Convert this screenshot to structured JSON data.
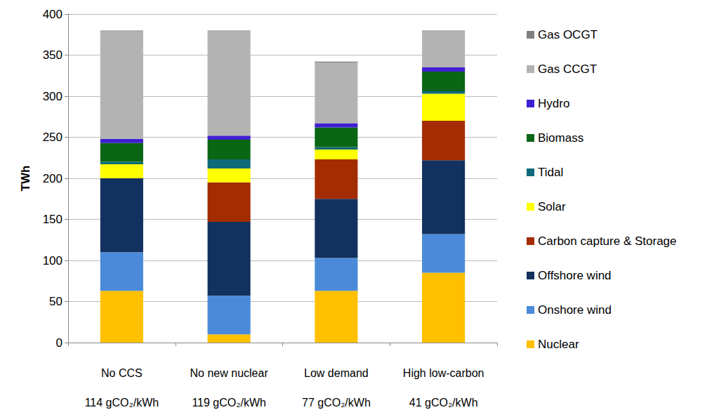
{
  "chart_data": {
    "type": "bar",
    "stacked": true,
    "grid": true,
    "legend": "right",
    "y_label": "TWh",
    "categories": [
      "No CCS\n114 gCO₂/kWh",
      "No new nuclear\n119 gCO₂/kWh",
      "Low demand\n77 gCO₂/kWh",
      "High low-carbon\n41 gCO₂/kWh"
    ],
    "ylim": [
      0,
      400
    ],
    "yticks": [
      0,
      50,
      100,
      150,
      200,
      250,
      300,
      350,
      400
    ],
    "series": [
      {
        "name": "Nuclear",
        "color": "#ffc000",
        "values": [
          63,
          10,
          63,
          85
        ]
      },
      {
        "name": "Onshore wind",
        "color": "#4a8ad8",
        "values": [
          47,
          47,
          40,
          47
        ]
      },
      {
        "name": "Offshore wind",
        "color": "#13315f",
        "values": [
          90,
          90,
          72,
          90
        ]
      },
      {
        "name": "Carbon capture & Storage",
        "color": "#a32c00",
        "values": [
          0,
          48,
          48,
          48
        ]
      },
      {
        "name": "Solar",
        "color": "#ffff00",
        "values": [
          17,
          17,
          12,
          33
        ]
      },
      {
        "name": "Tidal",
        "color": "#0e6a78",
        "values": [
          3,
          11,
          3,
          3
        ]
      },
      {
        "name": "Biomass",
        "color": "#0a6615",
        "values": [
          23,
          24,
          24,
          24
        ]
      },
      {
        "name": "Hydro",
        "color": "#3f1fd0",
        "values": [
          5,
          5,
          5,
          5
        ]
      },
      {
        "name": "Gas CCGT",
        "color": "#b3b3b3",
        "values": [
          131,
          127,
          74,
          44
        ]
      },
      {
        "name": "Gas OCGT",
        "color": "#808080",
        "values": [
          1,
          1,
          1,
          1
        ]
      }
    ]
  }
}
